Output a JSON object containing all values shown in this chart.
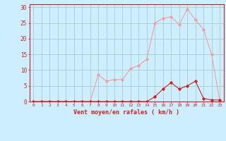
{
  "x_labels": [
    0,
    1,
    2,
    3,
    4,
    5,
    6,
    7,
    8,
    9,
    10,
    11,
    12,
    13,
    14,
    15,
    16,
    17,
    18,
    19,
    20,
    21,
    22,
    23
  ],
  "rafales_y": [
    0,
    0,
    0,
    0,
    0,
    0,
    0,
    0,
    8.5,
    6.5,
    7,
    7,
    10.5,
    11.5,
    13.5,
    25,
    26.5,
    27,
    24.5,
    29.5,
    26,
    23,
    15,
    0.5
  ],
  "moyen_y": [
    0,
    0,
    0,
    0,
    0,
    0,
    0,
    0,
    0,
    0,
    0,
    0,
    0,
    0,
    0,
    1.5,
    4,
    6,
    4,
    5,
    6.5,
    1,
    0.5,
    0.5
  ],
  "bg_color": "#cceeff",
  "grid_color": "#aacccc",
  "line_color_rafales": "#f0a0a0",
  "line_color_moyen": "#cc2222",
  "xlabel": "Vent moyen/en rafales ( km/h )",
  "ylim": [
    0,
    31
  ],
  "yticks": [
    0,
    5,
    10,
    15,
    20,
    25,
    30
  ],
  "tick_color": "#cc2222",
  "xlabel_color": "#cc2222",
  "axis_color": "#cc2222"
}
